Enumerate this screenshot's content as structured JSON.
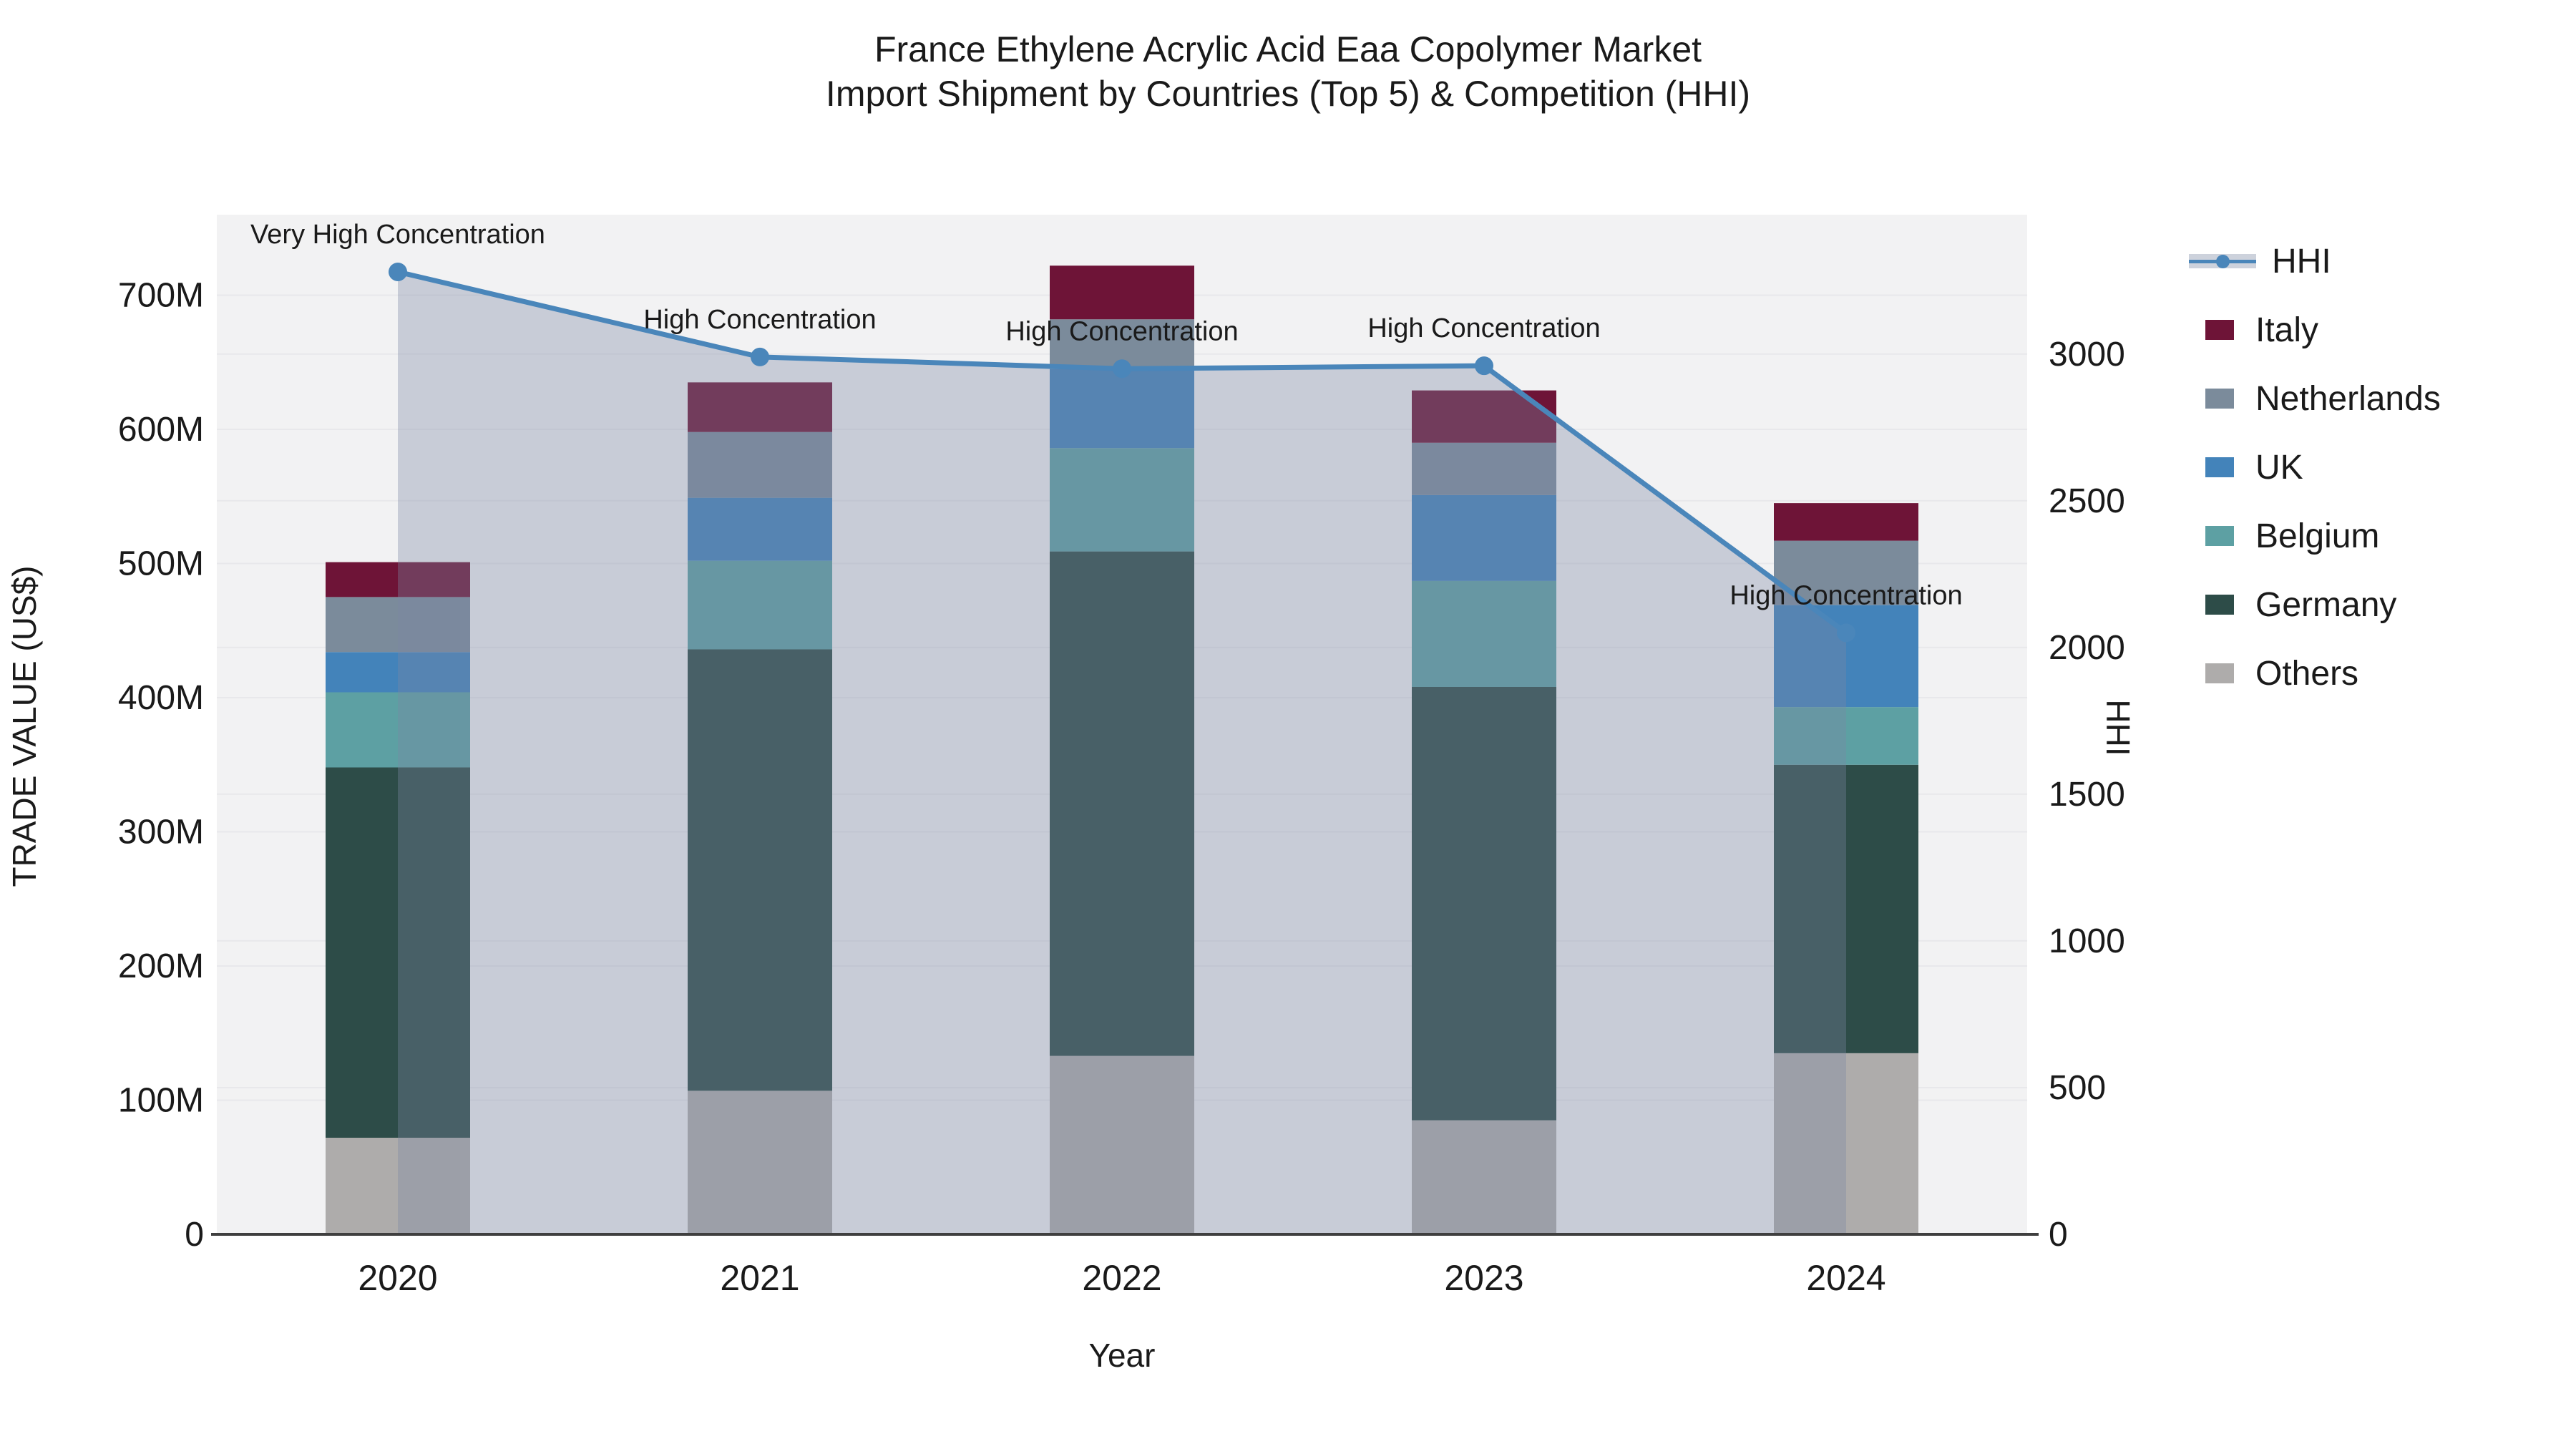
{
  "title": {
    "line1": "France Ethylene Acrylic Acid Eaa Copolymer Market",
    "line2": "Import Shipment by Countries (Top 5) & Competition (HHI)"
  },
  "axes": {
    "left": {
      "title": "TRADE VALUE (US$)",
      "ticks": [
        {
          "label": "0",
          "value": 0
        },
        {
          "label": "100M",
          "value": 100
        },
        {
          "label": "200M",
          "value": 200
        },
        {
          "label": "300M",
          "value": 300
        },
        {
          "label": "400M",
          "value": 400
        },
        {
          "label": "500M",
          "value": 500
        },
        {
          "label": "600M",
          "value": 600
        },
        {
          "label": "700M",
          "value": 700
        }
      ]
    },
    "right": {
      "title": "HHI",
      "ticks": [
        {
          "label": "0",
          "value": 0
        },
        {
          "label": "500",
          "value": 500
        },
        {
          "label": "1000",
          "value": 1000
        },
        {
          "label": "1500",
          "value": 1500
        },
        {
          "label": "2000",
          "value": 2000
        },
        {
          "label": "2500",
          "value": 2500
        },
        {
          "label": "3000",
          "value": 3000
        }
      ]
    },
    "x": {
      "title": "Year"
    }
  },
  "chart_data": {
    "type": "bar",
    "subtype": "stacked-bars-with-hhi-line-and-area",
    "title": "France Ethylene Acrylic Acid Eaa Copolymer Market Import Shipment by Countries (Top 5) & Competition (HHI)",
    "categories": [
      "2020",
      "2021",
      "2022",
      "2023",
      "2024"
    ],
    "value_unit": "million US$",
    "series": [
      {
        "name": "Italy",
        "color": "#6e1437",
        "values": [
          26,
          37,
          40,
          39,
          28
        ]
      },
      {
        "name": "Netherlands",
        "color": "#7b8b9b",
        "values": [
          41,
          49,
          37,
          39,
          48
        ]
      },
      {
        "name": "UK",
        "color": "#4383ba",
        "values": [
          30,
          47,
          59,
          64,
          76
        ]
      },
      {
        "name": "Belgium",
        "color": "#5da0a3",
        "values": [
          56,
          66,
          77,
          79,
          43
        ]
      },
      {
        "name": "Germany",
        "color": "#2d4c48",
        "values": [
          276,
          329,
          376,
          323,
          215
        ]
      },
      {
        "name": "Others",
        "color": "#aeacab",
        "values": [
          72,
          107,
          133,
          85,
          135
        ]
      }
    ],
    "stack_order": [
      "Others",
      "Germany",
      "Belgium",
      "UK",
      "Netherlands",
      "Italy"
    ],
    "stack_totals": [
      501,
      635,
      722,
      629,
      545
    ],
    "line_series": {
      "name": "HHI",
      "color": "#4a86ba",
      "area_fill": "rgba(122,134,163,0.35)",
      "values": [
        3280,
        2990,
        2950,
        2960,
        2050
      ]
    },
    "annotations": [
      "Very High Concentration",
      "High Concentration",
      "High Concentration",
      "High Concentration",
      "High Concentration"
    ],
    "xlabel": "Year",
    "ylabel": "TRADE VALUE (US$)",
    "ylabel_right": "HHI",
    "ylim_left": [
      0,
      760
    ],
    "ylim_right": [
      0,
      3475
    ],
    "grid": true,
    "legend_position": "right"
  },
  "legend": {
    "items": [
      {
        "label": "HHI",
        "type": "line",
        "color": "#4a86ba"
      },
      {
        "label": "Italy",
        "type": "swatch",
        "color": "#6e1437"
      },
      {
        "label": "Netherlands",
        "type": "swatch",
        "color": "#7b8b9b"
      },
      {
        "label": "UK",
        "type": "swatch",
        "color": "#4383ba"
      },
      {
        "label": "Belgium",
        "type": "swatch",
        "color": "#5da0a3"
      },
      {
        "label": "Germany",
        "type": "swatch",
        "color": "#2d4c48"
      },
      {
        "label": "Others",
        "type": "swatch",
        "color": "#aeacab"
      }
    ]
  },
  "colors": {
    "plot_background": "#f2f2f3",
    "gridline": "#e8e8eb",
    "axis_line": "#3f3f3f",
    "text": "#1a1a1a",
    "hhi_line": "#4a86ba",
    "hhi_area": "rgba(122,134,163,0.35)",
    "legend_hhi_band": "#cdd2dc"
  }
}
